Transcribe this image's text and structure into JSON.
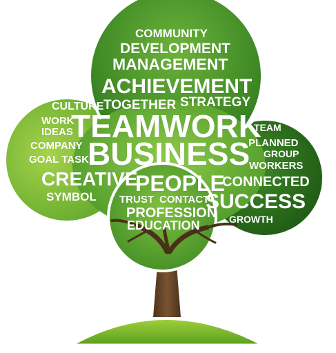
{
  "illustration": {
    "colors": {
      "foliage_light": "#8cc63f",
      "foliage_mid": "#5aa32a",
      "foliage_dark": "#2f6f1b",
      "trunk": "#6b4a2b",
      "hill": "#7dbb2e",
      "text": "#ffffff"
    },
    "words": {
      "community": "COMMUNITY",
      "development": "DEVELOPMENT",
      "management": "MANAGEMENT",
      "achievement": "ACHIEVEMENT",
      "culture": "CULTURE",
      "together": "TOGETHER",
      "strategy": "STRATEGY",
      "work": "WORK",
      "ideas": "IDEAS",
      "teamwork": "TEAMWORK",
      "team": "TEAM",
      "company": "COMPANY",
      "planned": "PLANNED",
      "group": "GROUP",
      "business": "BUSINESS",
      "goal_task": "GOAL TASK",
      "workers": "WORKERS",
      "creative": "CREATIVE",
      "people": "PEOPLE",
      "connected": "CONNECTED",
      "symbol": "SYMBOL",
      "trust": "TRUST",
      "contact": "CONTACT",
      "success": "SUCCESS",
      "profession": "PROFESSION",
      "growth": "GROWTH",
      "education": "EDUCATION"
    }
  }
}
